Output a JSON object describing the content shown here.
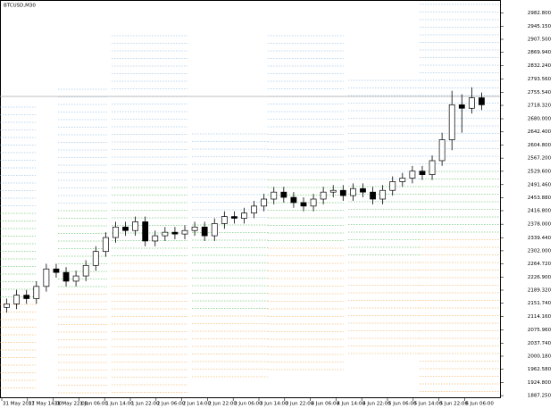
{
  "chart_data": {
    "type": "candlestick",
    "title": "BTCUSD,M30",
    "open": [
      2140,
      2150,
      2175,
      2165,
      2200,
      2250,
      2240,
      2215,
      2230,
      2260,
      2300,
      2340,
      2370,
      2360,
      2385,
      2330,
      2345,
      2355,
      2350,
      2360,
      2370,
      2345,
      2380,
      2400,
      2395,
      2410,
      2430,
      2450,
      2470,
      2455,
      2440,
      2430,
      2450,
      2470,
      2475,
      2460,
      2480,
      2470,
      2450,
      2475,
      2500,
      2510,
      2530,
      2520,
      2560,
      2620,
      2720,
      2710,
      2740
    ],
    "high": [
      2165,
      2190,
      2190,
      2215,
      2265,
      2265,
      2255,
      2245,
      2275,
      2315,
      2355,
      2385,
      2385,
      2400,
      2400,
      2360,
      2370,
      2370,
      2375,
      2385,
      2385,
      2395,
      2415,
      2415,
      2425,
      2445,
      2465,
      2485,
      2485,
      2470,
      2455,
      2465,
      2485,
      2490,
      2490,
      2495,
      2495,
      2485,
      2490,
      2515,
      2525,
      2545,
      2545,
      2575,
      2640,
      2760,
      2750,
      2770,
      2755
    ],
    "low": [
      2125,
      2135,
      2150,
      2150,
      2185,
      2225,
      2200,
      2200,
      2215,
      2245,
      2285,
      2325,
      2345,
      2345,
      2315,
      2315,
      2330,
      2335,
      2335,
      2345,
      2330,
      2330,
      2365,
      2380,
      2380,
      2395,
      2415,
      2435,
      2440,
      2425,
      2415,
      2415,
      2435,
      2455,
      2445,
      2445,
      2455,
      2435,
      2435,
      2460,
      2485,
      2495,
      2505,
      2505,
      2545,
      2590,
      2640,
      2695,
      2705
    ],
    "close": [
      2150,
      2175,
      2165,
      2200,
      2250,
      2240,
      2215,
      2230,
      2260,
      2300,
      2340,
      2370,
      2360,
      2385,
      2330,
      2345,
      2355,
      2350,
      2360,
      2370,
      2345,
      2380,
      2400,
      2395,
      2410,
      2430,
      2450,
      2470,
      2455,
      2440,
      2430,
      2450,
      2470,
      2475,
      2460,
      2480,
      2470,
      2450,
      2475,
      2500,
      2510,
      2530,
      2520,
      2560,
      2620,
      2720,
      2710,
      2740,
      2720
    ],
    "xlabels": [
      "31 May 2017",
      "31 May 14:00",
      "31 May 22:00",
      "1 Jun 06:00",
      "1 Jun 14:00",
      "1 Jun 22:00",
      "2 Jun 06:00",
      "2 Jun 14:00",
      "2 Jun 22:00",
      "3 Jun 06:00",
      "3 Jun 14:00",
      "3 Jun 22:00",
      "4 Jun 06:00",
      "4 Jun 14:00",
      "4 Jun 22:00",
      "5 Jun 06:00",
      "5 Jun 14:00",
      "5 Jun 22:00",
      "6 Jun 06:00"
    ],
    "ylim": [
      1880,
      3020
    ],
    "yticks": [
      {
        "value": 2982.8,
        "label": "2982.800"
      },
      {
        "value": 2945.15,
        "label": "2945.150"
      },
      {
        "value": 2907.5,
        "label": "2907.500"
      },
      {
        "value": 2869.94,
        "label": "2869.940"
      },
      {
        "value": 2832.24,
        "label": "2832.240"
      },
      {
        "value": 2793.56,
        "label": "2793.560"
      },
      {
        "value": 2755.54,
        "label": "2755.540"
      },
      {
        "value": 2718.32,
        "label": "2718.320"
      },
      {
        "value": 2680,
        "label": "2680.000"
      },
      {
        "value": 2642.4,
        "label": "2642.400"
      },
      {
        "value": 2604.8,
        "label": "2604.800"
      },
      {
        "value": 2567.2,
        "label": "2567.200"
      },
      {
        "value": 2529.6,
        "label": "2529.600"
      },
      {
        "value": 2491.46,
        "label": "2491.460"
      },
      {
        "value": 2453.88,
        "label": "2453.880"
      },
      {
        "value": 2416.8,
        "label": "2416.800"
      },
      {
        "value": 2378,
        "label": "2378.000"
      },
      {
        "value": 2339.44,
        "label": "2339.440"
      },
      {
        "value": 2302,
        "label": "2302.000"
      },
      {
        "value": 2264.72,
        "label": "2264.720"
      },
      {
        "value": 2226.9,
        "label": "2226.900"
      },
      {
        "value": 2189.32,
        "label": "2189.320"
      },
      {
        "value": 2151.74,
        "label": "2151.740"
      },
      {
        "value": 2114.16,
        "label": "2114.160"
      },
      {
        "value": 2075.96,
        "label": "2075.960"
      },
      {
        "value": 2037.74,
        "label": "2037.740"
      },
      {
        "value": 2000.18,
        "label": "2000.180"
      },
      {
        "value": 1962.58,
        "label": "1962.580"
      },
      {
        "value": 1924.8,
        "label": "1924.800"
      },
      {
        "value": 1887.25,
        "label": "1887.250"
      }
    ]
  }
}
